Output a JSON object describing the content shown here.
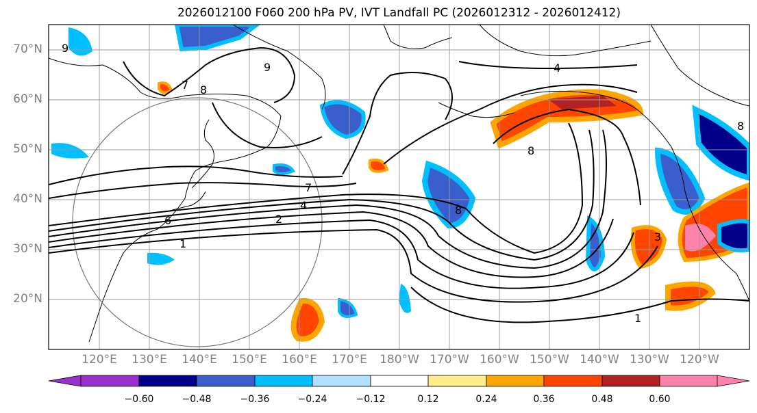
{
  "title": "2026012100 F060 200 hPa PV, IVT Landfall PC (2026012312 - 2026012412)",
  "lat_labels": [
    "70°N",
    "60°N",
    "50°N",
    "40°N",
    "30°N",
    "20°N"
  ],
  "lon_labels": [
    "120°E",
    "130°E",
    "140°E",
    "150°E",
    "160°E",
    "170°E",
    "180°W",
    "170°W",
    "160°W",
    "150°W",
    "140°W",
    "130°W",
    "120°W"
  ],
  "contour_labels": [
    "9",
    "8",
    "7",
    "7",
    "6",
    "4",
    "2",
    "1",
    "8",
    "4",
    "8",
    "1",
    "8",
    "9",
    "3"
  ],
  "colorbar": {
    "ticks": [
      "−0.60",
      "−0.48",
      "−0.36",
      "−0.24",
      "−0.12",
      "0.12",
      "0.24",
      "0.36",
      "0.48",
      "0.60"
    ],
    "colors": [
      "#9932cc",
      "#00008b",
      "#3a5fcd",
      "#00bfff",
      "#b0e2ff",
      "#ffffff",
      "#ffec8b",
      "#ffa500",
      "#ff4500",
      "#b22222",
      "#ff82ab"
    ]
  }
}
